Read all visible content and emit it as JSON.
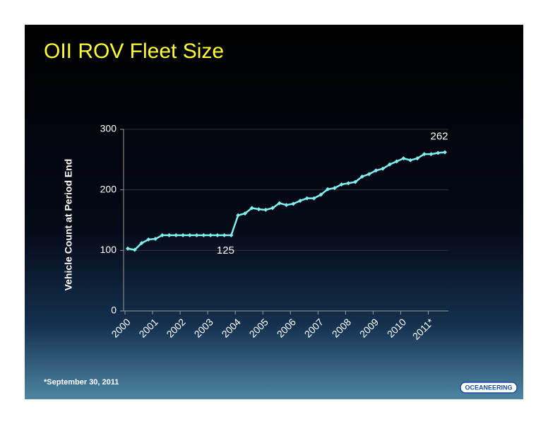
{
  "chart_data": {
    "type": "line",
    "title": "OII ROV Fleet Size",
    "y_label": "Vehicle Count at Period End",
    "footnote": "*September 30, 2011",
    "logo": "OCEANEERING",
    "categories": [
      "2000",
      null,
      null,
      null,
      "2001",
      null,
      null,
      null,
      "2002",
      null,
      null,
      null,
      "2003",
      null,
      null,
      null,
      "2004",
      null,
      null,
      null,
      "2005",
      null,
      null,
      null,
      "2006",
      null,
      null,
      null,
      "2007",
      null,
      null,
      null,
      "2008",
      null,
      null,
      null,
      "2009",
      null,
      null,
      null,
      "2010",
      null,
      null,
      null,
      "2011*",
      null,
      null
    ],
    "series": [
      {
        "name": null,
        "color": "#7ff0f0",
        "values": [
          103,
          101,
          112,
          118,
          119,
          125,
          125,
          125,
          125,
          125,
          125,
          125,
          125,
          125,
          125,
          125,
          158,
          161,
          170,
          168,
          167,
          170,
          178,
          175,
          177,
          182,
          186,
          186,
          192,
          201,
          203,
          209,
          211,
          213,
          222,
          226,
          232,
          235,
          242,
          247,
          252,
          249,
          252,
          259,
          259,
          261,
          262
        ],
        "value_labels": [
          null,
          null,
          null,
          null,
          null,
          null,
          null,
          null,
          null,
          null,
          null,
          null,
          null,
          null,
          null,
          "125",
          null,
          null,
          null,
          null,
          null,
          null,
          null,
          null,
          null,
          null,
          null,
          null,
          null,
          null,
          null,
          null,
          null,
          null,
          null,
          null,
          null,
          null,
          null,
          null,
          null,
          null,
          null,
          null,
          null,
          null,
          "262"
        ]
      }
    ],
    "ylim": [
      0,
      300
    ],
    "yticks": [
      0,
      100,
      200,
      300
    ],
    "grid": true
  }
}
